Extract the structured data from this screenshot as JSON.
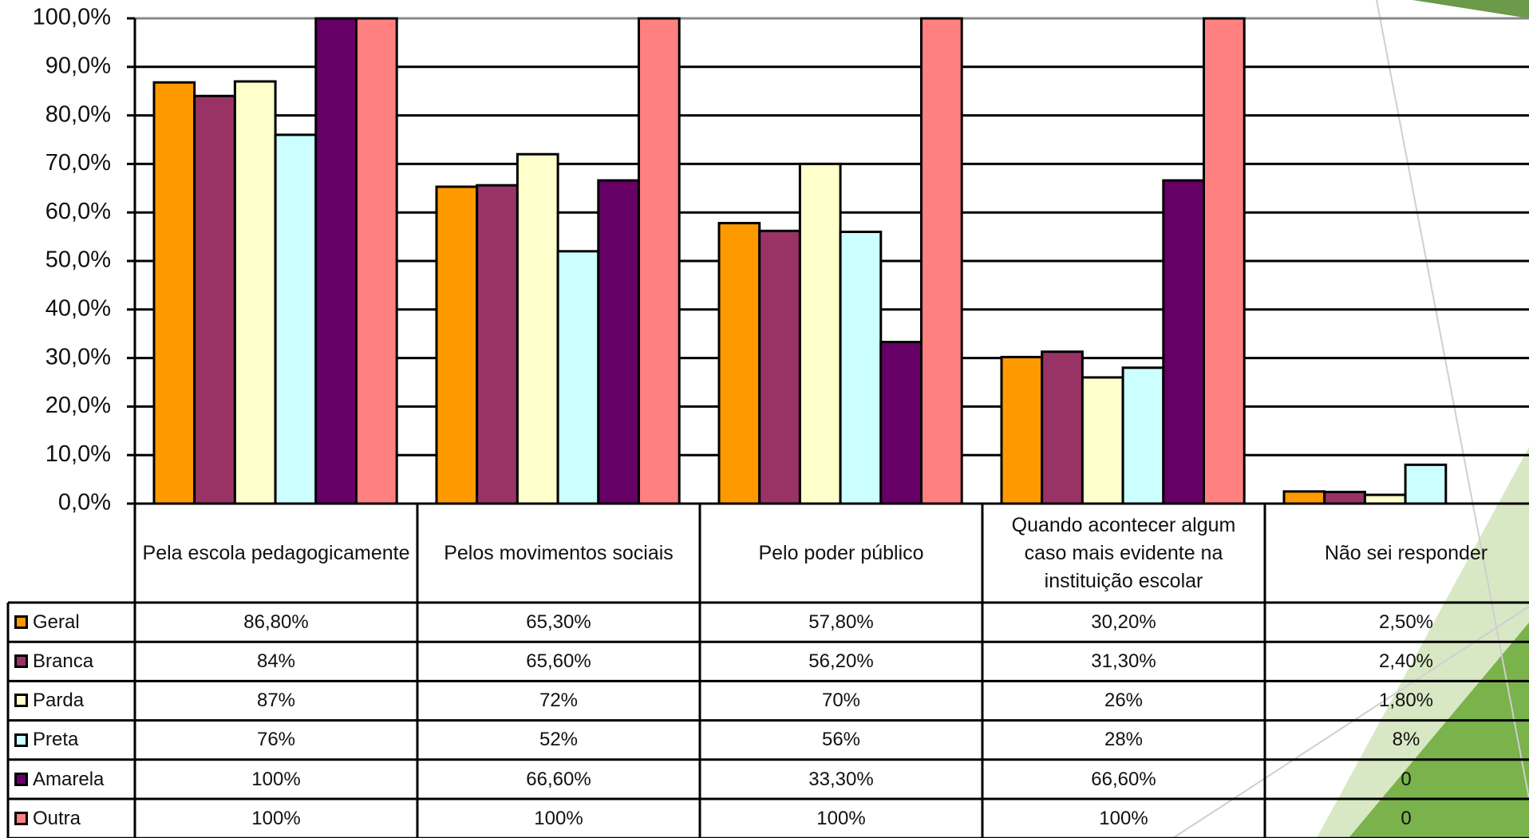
{
  "chart_data": {
    "type": "bar",
    "categories": [
      "Pela escola pedagogicamente",
      "Pelos movimentos sociais",
      "Pelo poder público",
      "Quando acontecer algum caso mais evidente na instituição escolar",
      "Não sei responder"
    ],
    "series": [
      {
        "name": "Geral",
        "color": "#ff9900",
        "values": [
          86.8,
          65.3,
          57.8,
          30.2,
          2.5
        ],
        "value_labels": [
          "86,80%",
          "65,30%",
          "57,80%",
          "30,20%",
          "2,50%"
        ]
      },
      {
        "name": "Branca",
        "color": "#993366",
        "values": [
          84,
          65.6,
          56.2,
          31.3,
          2.4
        ],
        "value_labels": [
          "84%",
          "65,60%",
          "56,20%",
          "31,30%",
          "2,40%"
        ]
      },
      {
        "name": "Parda",
        "color": "#ffffcc",
        "values": [
          87,
          72,
          70,
          26,
          1.8
        ],
        "value_labels": [
          "87%",
          "72%",
          "70%",
          "26%",
          "1,80%"
        ]
      },
      {
        "name": "Preta",
        "color": "#ccffff",
        "values": [
          76,
          52,
          56,
          28,
          8
        ],
        "value_labels": [
          "76%",
          "52%",
          "56%",
          "28%",
          "8%"
        ]
      },
      {
        "name": "Amarela",
        "color": "#660066",
        "values": [
          100,
          66.6,
          33.3,
          66.6,
          0
        ],
        "value_labels": [
          "100%",
          "66,60%",
          "33,30%",
          "66,60%",
          "0"
        ]
      },
      {
        "name": "Outra",
        "color": "#ff8080",
        "values": [
          100,
          100,
          100,
          100,
          0
        ],
        "value_labels": [
          "100%",
          "100%",
          "100%",
          "100%",
          "0"
        ]
      }
    ],
    "ylim": [
      0,
      100
    ],
    "yticks": [
      {
        "value": 0,
        "label": "0,0%"
      },
      {
        "value": 10,
        "label": "10,0%"
      },
      {
        "value": 20,
        "label": "20,0%"
      },
      {
        "value": 30,
        "label": "30,0%"
      },
      {
        "value": 40,
        "label": "40,0%"
      },
      {
        "value": 50,
        "label": "50,0%"
      },
      {
        "value": 60,
        "label": "60,0%"
      },
      {
        "value": 70,
        "label": "70,0%"
      },
      {
        "value": 80,
        "label": "80,0%"
      },
      {
        "value": 90,
        "label": "90,0%"
      },
      {
        "value": 100,
        "label": "100,0%"
      }
    ],
    "grid": true
  }
}
